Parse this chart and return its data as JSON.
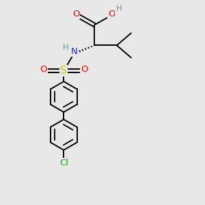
{
  "bg_color": "#e8e8e8",
  "colors": {
    "C": "#000000",
    "O": "#ff0000",
    "N": "#2020ff",
    "S": "#cccc00",
    "Cl": "#00bb00",
    "H": "#5f9ea0",
    "bond": "#000000"
  },
  "figsize": [
    3.0,
    3.0
  ],
  "dpi": 100,
  "xlim": [
    0,
    10
  ],
  "ylim": [
    0,
    10
  ]
}
